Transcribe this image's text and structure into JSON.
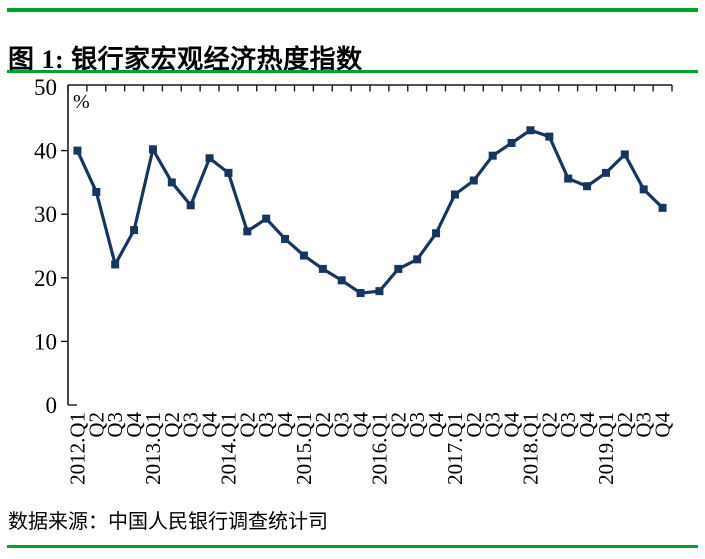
{
  "page": {
    "title": "图 1: 银行家宏观经济热度指数",
    "source_note": "数据来源：中国人民银行调查统计司"
  },
  "colors": {
    "divider_green": "#00a232",
    "series_navy": "#17365d",
    "axis_black": "#1a1a1a",
    "text_black": "#000000"
  },
  "chart_data": {
    "type": "line",
    "title": "银行家宏观经济热度指数",
    "unit_label": "%",
    "legend_position": "none",
    "grid": false,
    "marker": "square",
    "ylim": [
      0,
      50
    ],
    "yticks": [
      0,
      10,
      20,
      30,
      40,
      50
    ],
    "categories": [
      "2012.Q1",
      "Q2",
      "Q3",
      "Q4",
      "2013.Q1",
      "Q2",
      "Q3",
      "Q4",
      "2014.Q1",
      "Q2",
      "Q3",
      "Q4",
      "2015.Q1",
      "Q2",
      "Q3",
      "Q4",
      "2016.Q1",
      "Q2",
      "Q3",
      "Q4",
      "2017.Q1",
      "Q2",
      "Q3",
      "Q4",
      "2018.Q1",
      "Q2",
      "Q3",
      "Q4",
      "2019.Q1",
      "Q2",
      "Q3",
      "Q4"
    ],
    "series": [
      {
        "name": "银行家宏观经济热度指数",
        "values": [
          40.0,
          33.5,
          22.1,
          27.5,
          40.2,
          35.0,
          31.4,
          38.8,
          36.5,
          27.3,
          29.3,
          26.1,
          23.5,
          21.4,
          19.6,
          17.6,
          17.9,
          21.4,
          22.9,
          27.0,
          33.1,
          35.3,
          39.2,
          41.2,
          43.2,
          42.2,
          35.6,
          34.4,
          36.5,
          39.4,
          33.9,
          31.0
        ]
      }
    ]
  }
}
